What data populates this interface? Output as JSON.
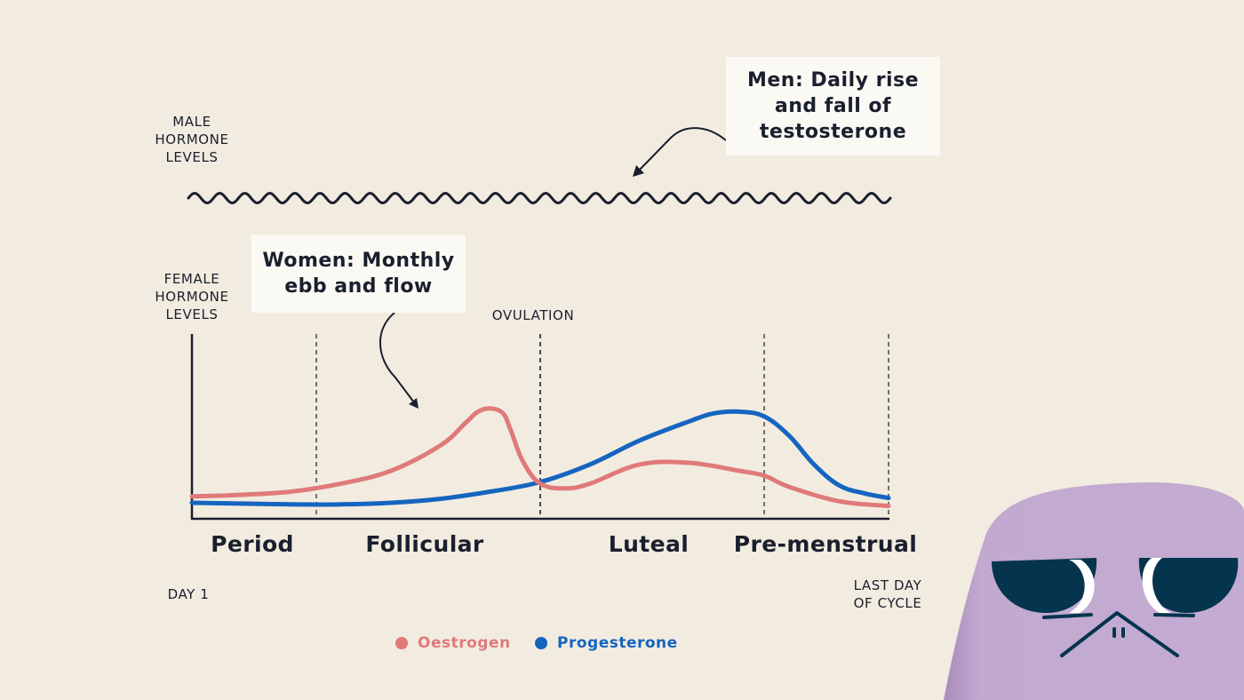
{
  "labels": {
    "male_axis": [
      "MALE",
      "HORMONE",
      "LEVELS"
    ],
    "female_axis": [
      "FEMALE",
      "HORMONE",
      "LEVELS"
    ],
    "ovulation": "OVULATION",
    "day_start": "DAY 1",
    "day_end": [
      "LAST DAY",
      "OF CYCLE"
    ]
  },
  "callouts": {
    "men": [
      "Men: Daily rise",
      "and fall of",
      "testosterone"
    ],
    "women": [
      "Women: Monthly",
      "ebb and flow"
    ]
  },
  "colors": {
    "background": "#f2ece0",
    "oestrogen": "#e07a7a",
    "progesterone": "#1565c0",
    "ink": "#1a1f2e",
    "mascot_body": "#c2a9d0",
    "mascot_glasses": "#04344e"
  },
  "chart_data": {
    "type": "line",
    "title": "",
    "xlabel": "",
    "ylabel": "FEMALE HORMONE LEVELS",
    "xlim": [
      0,
      28
    ],
    "ylim": [
      0,
      100
    ],
    "x_start_label": "DAY 1",
    "x_end_label": "LAST DAY OF CYCLE",
    "phases": [
      {
        "name": "Period",
        "start": 0,
        "end": 5
      },
      {
        "name": "Follicular",
        "start": 5,
        "end": 14
      },
      {
        "name": "Luteal",
        "start": 14,
        "end": 23
      },
      {
        "name": "Pre-menstrual",
        "start": 23,
        "end": 28
      }
    ],
    "markers": [
      {
        "x": 5,
        "label": ""
      },
      {
        "x": 14,
        "label": "OVULATION"
      },
      {
        "x": 23,
        "label": ""
      },
      {
        "x": 28,
        "label": ""
      }
    ],
    "series": [
      {
        "name": "Oestrogen",
        "x": [
          0,
          2,
          4,
          6,
          8,
          10,
          11,
          11.5,
          12,
          12.5,
          12.8,
          13.3,
          14,
          15,
          16,
          18,
          20,
          22,
          23,
          24,
          26,
          28
        ],
        "y": [
          14,
          15,
          17,
          22,
          30,
          46,
          60,
          67,
          69,
          66,
          56,
          36,
          22,
          19,
          22,
          34,
          35,
          30,
          27,
          20,
          11,
          8
        ]
      },
      {
        "name": "Progesterone",
        "x": [
          0,
          2,
          4,
          6,
          8,
          10,
          12,
          14,
          16,
          18,
          20,
          21,
          22,
          23,
          24,
          25,
          26,
          27,
          28
        ],
        "y": [
          10,
          9.5,
          9,
          9,
          10,
          12.5,
          17,
          23,
          34,
          49,
          61,
          66,
          67,
          64,
          52,
          34,
          21,
          16,
          13
        ]
      }
    ],
    "male_series": {
      "name": "Testosterone",
      "description_label": "Men: Daily rise and fall of testosterone",
      "cycles": 28
    },
    "legend": {
      "position": "bottom-center",
      "entries": [
        "Oestrogen",
        "Progesterone"
      ]
    }
  }
}
